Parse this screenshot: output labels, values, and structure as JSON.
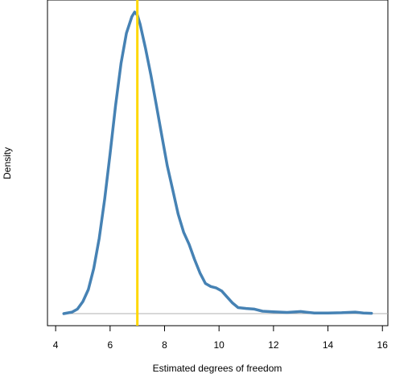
{
  "chart_data": {
    "type": "line",
    "title": "",
    "xlabel": "Estimated degrees of freedom",
    "ylabel": "Density",
    "xlim": [
      3.7,
      16.2
    ],
    "ylim": [
      -0.04,
      1.04
    ],
    "x_ticks": [
      4,
      6,
      8,
      10,
      12,
      14,
      16
    ],
    "x_tick_labels": [
      "4",
      "6",
      "8",
      "10",
      "12",
      "14",
      "16"
    ],
    "y_ticks_shown": false,
    "grid": false,
    "baseline": 0,
    "reference_line": {
      "x": 7,
      "color": "#FFD700"
    },
    "series": [
      {
        "color": "#4682B4",
        "points": [
          [
            4.3,
            0.0
          ],
          [
            4.6,
            0.005
          ],
          [
            4.8,
            0.015
          ],
          [
            5.0,
            0.04
          ],
          [
            5.2,
            0.08
          ],
          [
            5.4,
            0.15
          ],
          [
            5.6,
            0.25
          ],
          [
            5.8,
            0.38
          ],
          [
            6.0,
            0.53
          ],
          [
            6.2,
            0.69
          ],
          [
            6.4,
            0.83
          ],
          [
            6.6,
            0.93
          ],
          [
            6.8,
            0.985
          ],
          [
            6.9,
            1.0
          ],
          [
            7.0,
            0.99
          ],
          [
            7.1,
            0.96
          ],
          [
            7.3,
            0.88
          ],
          [
            7.5,
            0.79
          ],
          [
            7.7,
            0.69
          ],
          [
            7.9,
            0.59
          ],
          [
            8.1,
            0.49
          ],
          [
            8.3,
            0.41
          ],
          [
            8.5,
            0.33
          ],
          [
            8.7,
            0.27
          ],
          [
            8.9,
            0.23
          ],
          [
            9.1,
            0.18
          ],
          [
            9.3,
            0.135
          ],
          [
            9.5,
            0.1
          ],
          [
            9.7,
            0.09
          ],
          [
            9.9,
            0.085
          ],
          [
            10.1,
            0.075
          ],
          [
            10.3,
            0.055
          ],
          [
            10.5,
            0.035
          ],
          [
            10.7,
            0.02
          ],
          [
            11.0,
            0.017
          ],
          [
            11.3,
            0.015
          ],
          [
            11.6,
            0.008
          ],
          [
            12.0,
            0.006
          ],
          [
            12.5,
            0.004
          ],
          [
            13.0,
            0.007
          ],
          [
            13.5,
            0.002
          ],
          [
            14.0,
            0.002
          ],
          [
            14.5,
            0.003
          ],
          [
            15.0,
            0.005
          ],
          [
            15.3,
            0.002
          ],
          [
            15.6,
            0.001
          ]
        ]
      }
    ]
  }
}
